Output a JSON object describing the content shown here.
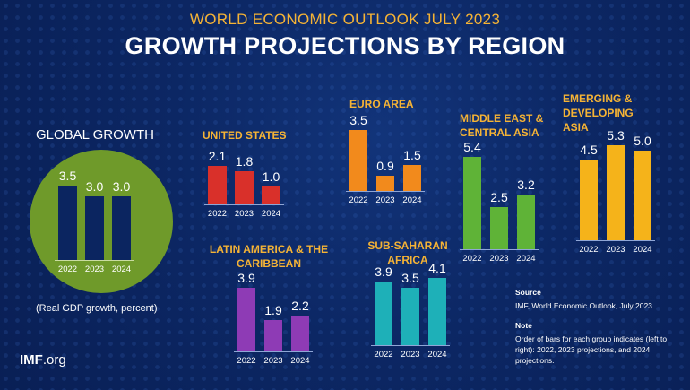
{
  "header": {
    "supertitle": "WORLD ECONOMIC OUTLOOK JULY 2023",
    "title": "GROWTH PROJECTIONS BY REGION"
  },
  "chart_data": {
    "type": "bar",
    "unit_label": "(Real GDP growth, percent)",
    "categories": [
      "2022",
      "2023",
      "2024"
    ],
    "panels": [
      {
        "id": "global",
        "title": "GLOBAL GROWTH",
        "values": [
          3.5,
          3.0,
          3.0
        ],
        "labels": [
          "3.5",
          "3.0",
          "3.0"
        ],
        "color": "#0b2560",
        "circle_color": "#6f9a2a"
      },
      {
        "id": "us",
        "title": "UNITED STATES",
        "values": [
          2.1,
          1.8,
          1.0
        ],
        "labels": [
          "2.1",
          "1.8",
          "1.0"
        ],
        "color": "#d9302a"
      },
      {
        "id": "euro",
        "title": "EURO AREA",
        "values": [
          3.5,
          0.9,
          1.5
        ],
        "labels": [
          "3.5",
          "0.9",
          "1.5"
        ],
        "color": "#f28a1c"
      },
      {
        "id": "mecA",
        "title": "MIDDLE EAST & CENTRAL ASIA",
        "values": [
          5.4,
          2.5,
          3.2
        ],
        "labels": [
          "5.4",
          "2.5",
          "3.2"
        ],
        "color": "#5fb337"
      },
      {
        "id": "asia",
        "title": "EMERGING & DEVELOPING ASIA",
        "values": [
          4.5,
          5.3,
          5.0
        ],
        "labels": [
          "4.5",
          "5.3",
          "5.0"
        ],
        "color": "#f5b31a"
      },
      {
        "id": "latam",
        "title": "LATIN AMERICA & THE CARIBBEAN",
        "values": [
          3.9,
          1.9,
          2.2
        ],
        "labels": [
          "3.9",
          "1.9",
          "2.2"
        ],
        "color": "#8e3bb5"
      },
      {
        "id": "ssa",
        "title": "SUB-SAHARAN AFRICA",
        "values": [
          3.9,
          3.5,
          4.1
        ],
        "labels": [
          "3.9",
          "3.5",
          "4.1"
        ],
        "color": "#1eb0b8"
      }
    ]
  },
  "footer": {
    "logo_bold": "IMF",
    "logo_rest": ".org",
    "source_heading": "Source",
    "source_text": "IMF, World Economic Outlook, July 2023.",
    "note_heading": "Note",
    "note_text": "Order of bars for each group indicates (left to right): 2022, 2023 projections, and 2024 projections."
  }
}
